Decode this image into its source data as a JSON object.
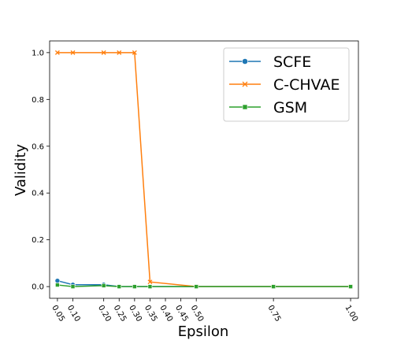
{
  "chart_data": {
    "type": "line",
    "xlabel": "Epsilon",
    "ylabel": "Validity",
    "x": [
      0.05,
      0.1,
      0.2,
      0.25,
      0.3,
      0.35,
      0.4,
      0.45,
      0.5,
      0.75,
      1.0
    ],
    "x_tick_labels": [
      "0.05",
      "0.10",
      "0.20",
      "0.25",
      "0.30",
      "0.35",
      "0.40",
      "0.45",
      "0.50",
      "0.75",
      "1.00"
    ],
    "y_ticks": [
      "0.0",
      "0.2",
      "0.4",
      "0.6",
      "0.8",
      "1.0"
    ],
    "xlim": [
      0.0247,
      1.0253
    ],
    "ylim": [
      -0.05,
      1.05
    ],
    "grid": false,
    "legend_position": "top-right",
    "series": [
      {
        "name": "SCFE",
        "color": "#1f77b4",
        "marker": "circle",
        "points": [
          [
            0.05,
            0.025
          ],
          [
            0.1,
            0.008
          ],
          [
            0.2,
            0.008
          ],
          [
            0.25,
            0.0
          ],
          [
            0.3,
            0.0
          ],
          [
            0.35,
            0.0
          ],
          [
            0.5,
            0.0
          ],
          [
            0.75,
            0.0
          ],
          [
            1.0,
            0.0
          ]
        ]
      },
      {
        "name": "C-CHVAE",
        "color": "#ff7f0e",
        "marker": "x",
        "points": [
          [
            0.05,
            1.0
          ],
          [
            0.1,
            1.0
          ],
          [
            0.2,
            1.0
          ],
          [
            0.25,
            1.0
          ],
          [
            0.3,
            1.0
          ],
          [
            0.35,
            0.02
          ],
          [
            0.5,
            0.0
          ],
          [
            0.75,
            0.0
          ],
          [
            1.0,
            0.0
          ]
        ]
      },
      {
        "name": "GSM",
        "color": "#2ca02c",
        "marker": "square",
        "points": [
          [
            0.05,
            0.007
          ],
          [
            0.1,
            0.0
          ],
          [
            0.2,
            0.004
          ],
          [
            0.25,
            0.0
          ],
          [
            0.3,
            0.0
          ],
          [
            0.35,
            0.0
          ],
          [
            0.5,
            0.0
          ],
          [
            0.75,
            0.0
          ],
          [
            1.0,
            0.0
          ]
        ]
      }
    ]
  }
}
